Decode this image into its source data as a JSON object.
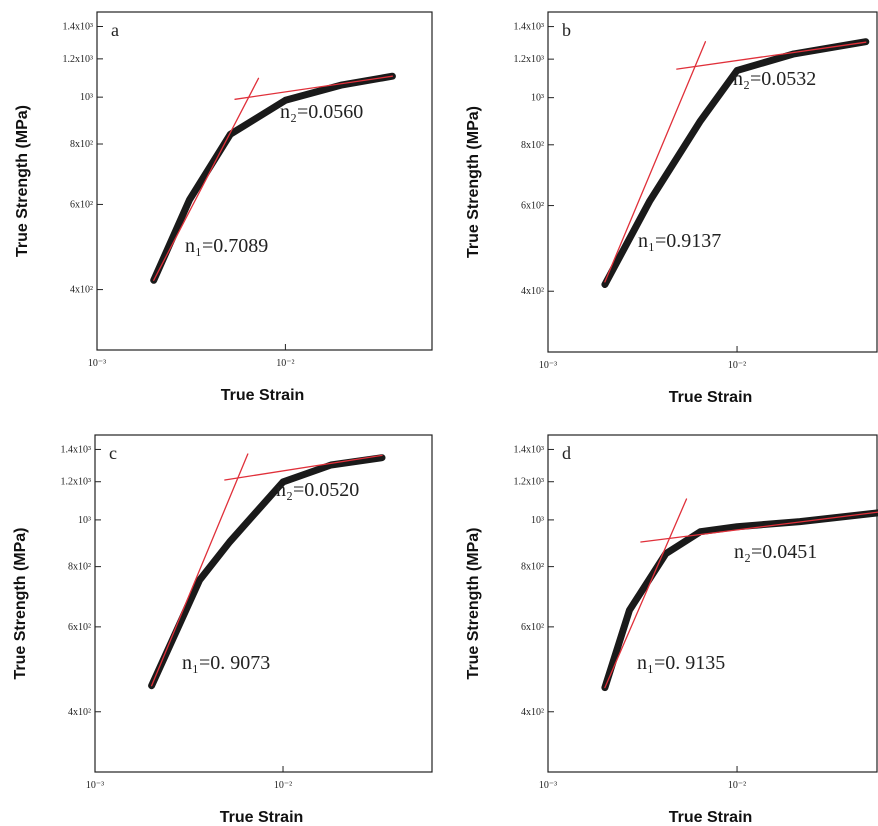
{
  "chart_data": [
    {
      "type": "line",
      "label": "a",
      "xlabel": "True Strain",
      "ylabel": "True Strength (MPa)",
      "log_x": true,
      "log_y": true,
      "xlim": [
        0.001,
        0.06
      ],
      "ylim": [
        300,
        1500
      ],
      "xticks": [
        {
          "value": 0.001,
          "label": "10⁻³"
        },
        {
          "value": 0.01,
          "label": "10⁻²"
        }
      ],
      "yticks": [
        {
          "value": 400,
          "label": "4x10²"
        },
        {
          "value": 600,
          "label": "6x10²"
        },
        {
          "value": 800,
          "label": "8x10²"
        },
        {
          "value": 1000,
          "label": "10³"
        },
        {
          "value": 1200,
          "label": "1.2x10³"
        },
        {
          "value": 1400,
          "label": "1.4x10³"
        }
      ],
      "series": [
        {
          "color": "#1a1a1a",
          "x": [
            0.002,
            0.0031,
            0.0051,
            0.01,
            0.02,
            0.037
          ],
          "values": [
            418,
            614,
            838,
            985,
            1060,
            1105
          ]
        },
        {
          "color": "#e0303a",
          "x": [
            0.002,
            0.0072
          ],
          "values": [
            418,
            1094
          ]
        },
        {
          "color": "#e0303a",
          "x": [
            0.0054,
            0.037
          ],
          "values": [
            990,
            1105
          ]
        }
      ],
      "annotations": [
        "n₁=0.7089",
        "n₂=0.0560"
      ]
    },
    {
      "type": "line",
      "label": "b",
      "xlabel": "True Strain",
      "ylabel": "True Strength (MPa)",
      "log_x": true,
      "log_y": true,
      "xlim": [
        0.001,
        0.055
      ],
      "ylim": [
        300,
        1500
      ],
      "xticks": [
        {
          "value": 0.001,
          "label": "10⁻³"
        },
        {
          "value": 0.01,
          "label": "10⁻²"
        }
      ],
      "yticks": [
        {
          "value": 400,
          "label": "4x10²"
        },
        {
          "value": 600,
          "label": "6x10²"
        },
        {
          "value": 800,
          "label": "8x10²"
        },
        {
          "value": 1000,
          "label": "10³"
        },
        {
          "value": 1200,
          "label": "1.2x10³"
        },
        {
          "value": 1400,
          "label": "1.4x10³"
        }
      ],
      "series": [
        {
          "color": "#1a1a1a",
          "x": [
            0.002,
            0.00346,
            0.0064,
            0.01,
            0.02,
            0.048
          ],
          "values": [
            413,
            614,
            896,
            1137,
            1230,
            1303
          ]
        },
        {
          "color": "#e0303a",
          "x": [
            0.002,
            0.0068
          ],
          "values": [
            418,
            1303
          ]
        },
        {
          "color": "#e0303a",
          "x": [
            0.0048,
            0.048
          ],
          "values": [
            1145,
            1300
          ]
        }
      ],
      "annotations": [
        "n₁=0.9137",
        "n₂=0.0532"
      ]
    },
    {
      "type": "line",
      "label": "c",
      "xlabel": "True Strain",
      "ylabel": "True Strength (MPa)",
      "log_x": true,
      "log_y": true,
      "xlim": [
        0.001,
        0.062
      ],
      "ylim": [
        300,
        1500
      ],
      "xticks": [
        {
          "value": 0.001,
          "label": "10⁻³"
        },
        {
          "value": 0.01,
          "label": "10⁻²"
        }
      ],
      "yticks": [
        {
          "value": 400,
          "label": "4x10²"
        },
        {
          "value": 600,
          "label": "6x10²"
        },
        {
          "value": 800,
          "label": "8x10²"
        },
        {
          "value": 1000,
          "label": "10³"
        },
        {
          "value": 1200,
          "label": "1.2x10³"
        },
        {
          "value": 1400,
          "label": "1.4x10³"
        }
      ],
      "series": [
        {
          "color": "#1a1a1a",
          "x": [
            0.002,
            0.0036,
            0.0052,
            0.01,
            0.018,
            0.0336
          ],
          "values": [
            453,
            750,
            900,
            1199,
            1300,
            1346
          ]
        },
        {
          "color": "#e0303a",
          "x": [
            0.002,
            0.0065
          ],
          "values": [
            453,
            1370
          ]
        },
        {
          "color": "#e0303a",
          "x": [
            0.0049,
            0.0336
          ],
          "values": [
            1210,
            1361
          ]
        }
      ],
      "annotations": [
        "n₁=0. 9073",
        "n₂=0.0520"
      ]
    },
    {
      "type": "line",
      "label": "d",
      "xlabel": "True Strain",
      "ylabel": "True Strength (MPa)",
      "log_x": true,
      "log_y": true,
      "xlim": [
        0.001,
        0.055
      ],
      "ylim": [
        300,
        1500
      ],
      "xticks": [
        {
          "value": 0.001,
          "label": "10⁻³"
        },
        {
          "value": 0.01,
          "label": "10⁻²"
        }
      ],
      "yticks": [
        {
          "value": 400,
          "label": "4x10²"
        },
        {
          "value": 600,
          "label": "6x10²"
        },
        {
          "value": 800,
          "label": "8x10²"
        },
        {
          "value": 1000,
          "label": "10³"
        },
        {
          "value": 1200,
          "label": "1.2x10³"
        },
        {
          "value": 1400,
          "label": "1.4x10³"
        }
      ],
      "series": [
        {
          "color": "#1a1a1a",
          "x": [
            0.002,
            0.0027,
            0.0042,
            0.0064,
            0.01,
            0.0215,
            0.0557
          ],
          "values": [
            449,
            650,
            851,
            945,
            968,
            992,
            1034
          ]
        },
        {
          "color": "#e0303a",
          "x": [
            0.002,
            0.0054
          ],
          "values": [
            449,
            1105
          ]
        },
        {
          "color": "#e0303a",
          "x": [
            0.0031,
            0.0557
          ],
          "values": [
            900,
            1038
          ]
        }
      ],
      "annotations": [
        "n₁=0. 9135",
        "n₂=0.0451"
      ]
    }
  ]
}
